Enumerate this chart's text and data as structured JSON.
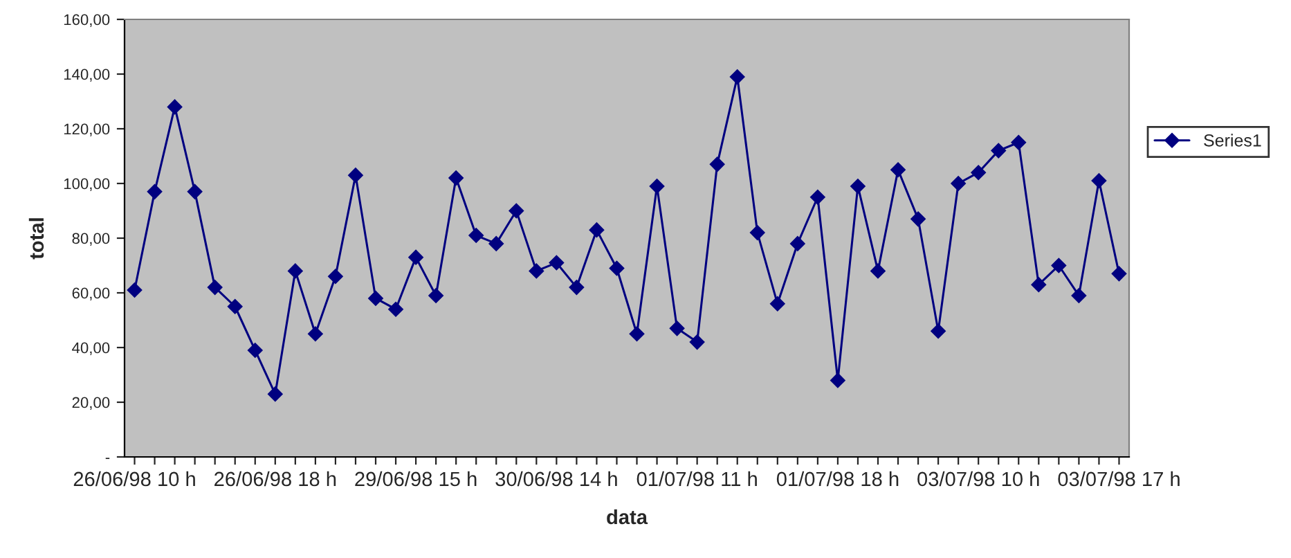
{
  "chart_data": {
    "type": "line",
    "xlabel": "data",
    "ylabel": "total",
    "categories": [
      "26/06/98 10 h",
      null,
      null,
      null,
      null,
      null,
      null,
      "26/06/98 18 h",
      null,
      null,
      null,
      null,
      null,
      null,
      "29/06/98 15 h",
      null,
      null,
      null,
      null,
      null,
      null,
      "30/06/98 14 h",
      null,
      null,
      null,
      null,
      null,
      null,
      "01/07/98 11 h",
      null,
      null,
      null,
      null,
      null,
      null,
      "01/07/98 18 h",
      null,
      null,
      null,
      null,
      null,
      null,
      "03/07/98 10 h",
      null,
      null,
      null,
      null,
      null,
      null,
      "03/07/98 17 h"
    ],
    "series": [
      {
        "name": "Series1",
        "color": "#000080",
        "values": [
          61,
          97,
          128,
          97,
          62,
          55,
          39,
          23,
          68,
          45,
          66,
          103,
          58,
          54,
          73,
          59,
          102,
          81,
          78,
          90,
          68,
          71,
          62,
          83,
          69,
          45,
          99,
          47,
          42,
          107,
          139,
          82,
          56,
          78,
          95,
          28,
          99,
          68,
          105,
          87,
          46,
          100,
          104,
          112,
          115,
          63,
          70,
          59,
          101,
          67
        ]
      }
    ],
    "ylim": [
      0,
      160
    ],
    "yticks": [
      {
        "value": 0,
        "label": "-"
      },
      {
        "value": 20,
        "label": "20,00"
      },
      {
        "value": 40,
        "label": "40,00"
      },
      {
        "value": 60,
        "label": "60,00"
      },
      {
        "value": 80,
        "label": "80,00"
      },
      {
        "value": 100,
        "label": "100,00"
      },
      {
        "value": 120,
        "label": "120,00"
      },
      {
        "value": 140,
        "label": "140,00"
      },
      {
        "value": 160,
        "label": "160,00"
      }
    ],
    "grid": false,
    "legend": "right",
    "marker": "diamond",
    "line_style": "solid"
  }
}
